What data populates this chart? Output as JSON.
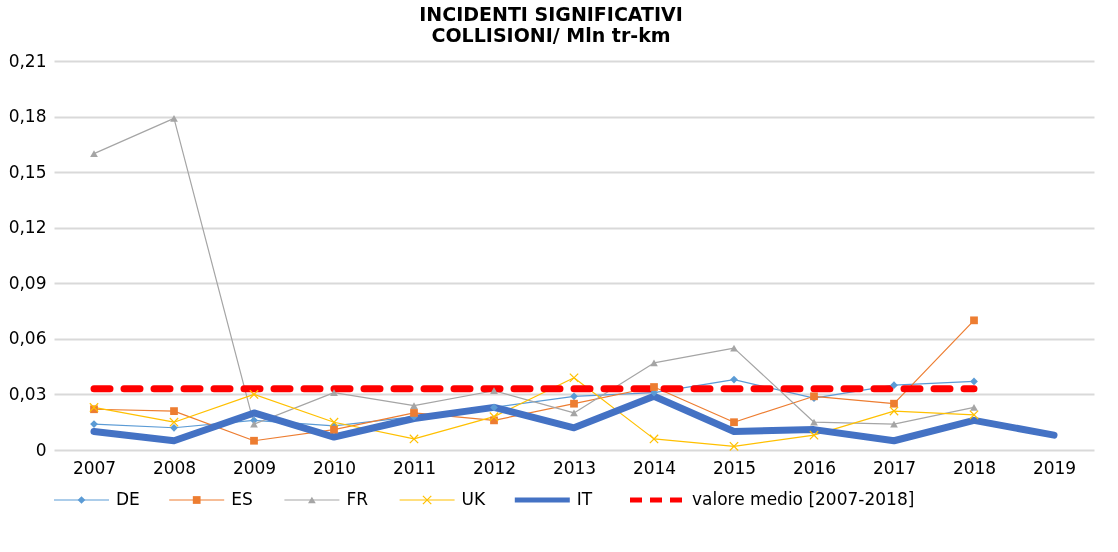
{
  "chart_data": {
    "type": "line",
    "title": "INCIDENTI SIGNIFICATIVI",
    "subtitle": "COLLISIONI/ Mln tr-km",
    "categories": [
      "2007",
      "2008",
      "2009",
      "2010",
      "2011",
      "2012",
      "2013",
      "2014",
      "2015",
      "2016",
      "2017",
      "2018",
      "2019"
    ],
    "ylim": [
      0,
      0.21
    ],
    "yticks": [
      0,
      {
        "value": 0.03,
        "label": "0,03"
      },
      {
        "value": 0.06,
        "label": "0,06"
      },
      {
        "value": 0.09,
        "label": "0,09"
      },
      {
        "value": 0.12,
        "label": "0,12"
      },
      {
        "value": 0.15,
        "label": "0,15"
      },
      {
        "value": 0.18,
        "label": "0,18"
      },
      {
        "value": 0.21,
        "label": "0,21"
      }
    ],
    "grid": "y",
    "legend": "bottom",
    "series": [
      {
        "name": "DE",
        "color": "#5b9bd5",
        "marker": "diamond",
        "values": [
          0.014,
          0.012,
          0.016,
          0.013,
          0.018,
          0.023,
          0.029,
          0.031,
          0.038,
          0.028,
          0.035,
          0.037,
          null
        ]
      },
      {
        "name": "ES",
        "color": "#ed7d31",
        "marker": "square",
        "values": [
          0.022,
          0.021,
          0.005,
          0.011,
          0.02,
          0.016,
          0.025,
          0.034,
          0.015,
          0.029,
          0.025,
          0.07,
          null
        ]
      },
      {
        "name": "FR",
        "color": "#a5a5a5",
        "marker": "triangle",
        "values": [
          0.16,
          0.179,
          0.014,
          0.031,
          0.024,
          0.032,
          0.02,
          0.047,
          0.055,
          0.015,
          0.014,
          0.023,
          null
        ]
      },
      {
        "name": "UK",
        "color": "#ffc000",
        "marker": "cross",
        "values": [
          0.023,
          0.015,
          0.03,
          0.015,
          0.006,
          0.018,
          0.039,
          0.006,
          0.002,
          0.008,
          0.021,
          0.019,
          null
        ]
      },
      {
        "name": "IT",
        "color": "#4472c4",
        "marker": "none",
        "values": [
          0.01,
          0.005,
          0.02,
          0.007,
          0.017,
          0.023,
          0.012,
          0.029,
          0.01,
          0.011,
          0.005,
          0.016,
          0.008
        ]
      },
      {
        "name": "valore medio [2007-2018]",
        "color": "#ff0000",
        "marker": "none",
        "line_style": "dashed",
        "values": [
          0.033,
          0.033,
          0.033,
          0.033,
          0.033,
          0.033,
          0.033,
          0.033,
          0.033,
          0.033,
          0.033,
          0.033,
          null
        ]
      }
    ]
  }
}
